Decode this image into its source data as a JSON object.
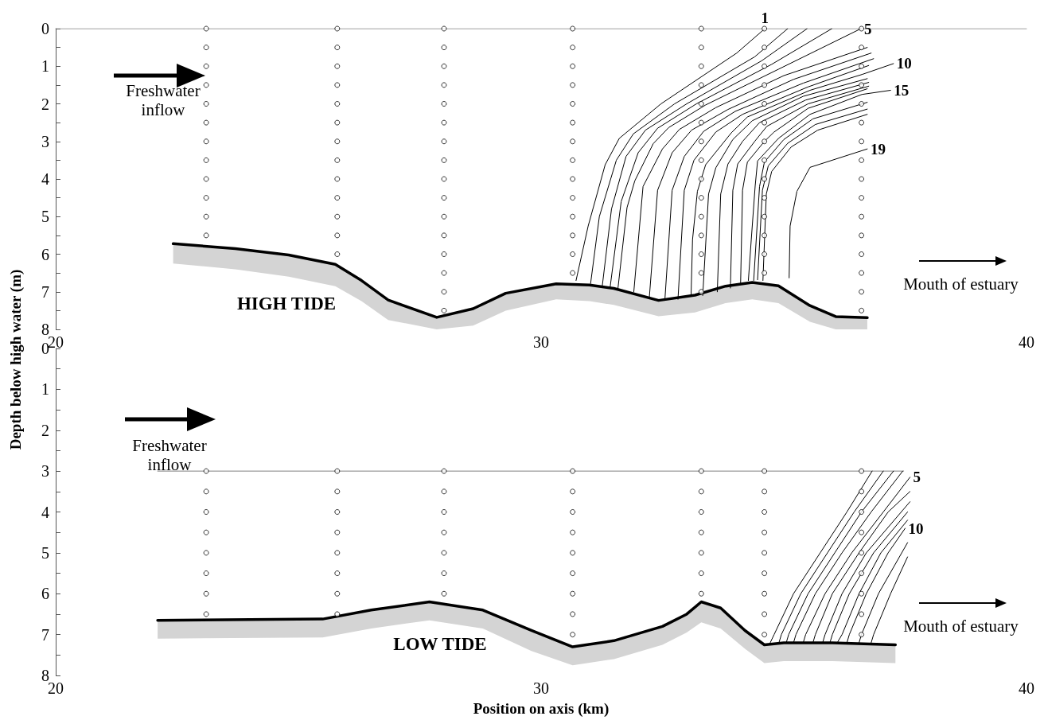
{
  "chart_data": [
    {
      "type": "line",
      "ylabel": "Depth below high water (m)",
      "annotations": [
        "Freshwater inflow",
        "Mouth of estuary",
        "HIGH TIDE"
      ],
      "xlim": [
        20,
        40
      ],
      "xticks": [
        20,
        30,
        40
      ],
      "ylim": [
        8,
        0
      ],
      "yticks": [
        0,
        {
          "value": 0.5,
          "label": null
        },
        1,
        {
          "value": 1.5,
          "label": null
        },
        2,
        {
          "value": 2.5,
          "label": null
        },
        3,
        {
          "value": 3.5,
          "label": null
        },
        4,
        {
          "value": 4.5,
          "label": null
        },
        5,
        {
          "value": 5.5,
          "label": null
        },
        6,
        {
          "value": 6.5,
          "label": null
        },
        7,
        {
          "value": 7.5,
          "label": null
        },
        8
      ],
      "series": [
        {
          "type": "line",
          "color": "#808080",
          "x": [
            20,
            40
          ],
          "values": [
            0,
            0
          ]
        },
        {
          "type": "scatter",
          "marker": "circle",
          "color": "#000000",
          "x": [
            23.1,
            23.1,
            23.1,
            23.1,
            23.1,
            23.1,
            23.1,
            23.1,
            23.1,
            23.1,
            23.1,
            23.1
          ],
          "values": [
            0,
            0.5,
            1,
            1.5,
            2,
            2.5,
            3,
            3.5,
            4,
            4.5,
            5,
            5.5
          ]
        },
        {
          "type": "scatter",
          "marker": "circle",
          "color": "#000000",
          "x": [
            25.8,
            25.8,
            25.8,
            25.8,
            25.8,
            25.8,
            25.8,
            25.8,
            25.8,
            25.8,
            25.8,
            25.8,
            25.8
          ],
          "values": [
            0,
            0.5,
            1,
            1.5,
            2,
            2.5,
            3,
            3.5,
            4,
            4.5,
            5,
            5.5,
            6
          ]
        },
        {
          "type": "scatter",
          "marker": "circle",
          "color": "#000000",
          "x": [
            28,
            28,
            28,
            28,
            28,
            28,
            28,
            28,
            28,
            28,
            28,
            28,
            28,
            28,
            28,
            28
          ],
          "values": [
            0,
            0.5,
            1,
            1.5,
            2,
            2.5,
            3,
            3.5,
            4,
            4.5,
            5,
            5.5,
            6,
            6.5,
            7,
            7.5
          ]
        },
        {
          "type": "scatter",
          "marker": "circle",
          "color": "#000000",
          "x": [
            30.65,
            30.65,
            30.65,
            30.65,
            30.65,
            30.65,
            30.65,
            30.65,
            30.65,
            30.65,
            30.65,
            30.65,
            30.65,
            30.65
          ],
          "values": [
            0,
            0.5,
            1,
            1.5,
            2,
            2.5,
            3,
            3.5,
            4,
            4.5,
            5,
            5.5,
            6,
            6.5
          ]
        },
        {
          "type": "scatter",
          "marker": "circle",
          "color": "#000000",
          "x": [
            33.3,
            33.3,
            33.3,
            33.3,
            33.3,
            33.3,
            33.3,
            33.3,
            33.3,
            33.3,
            33.3,
            33.3,
            33.3,
            33.3,
            33.3
          ],
          "values": [
            0,
            0.5,
            1,
            1.5,
            2,
            2.5,
            3,
            3.5,
            4,
            4.5,
            5,
            5.5,
            6,
            6.5,
            7
          ]
        },
        {
          "type": "scatter",
          "marker": "circle",
          "color": "#000000",
          "x": [
            34.6,
            34.6,
            34.6,
            34.6,
            34.6,
            34.6,
            34.6,
            34.6,
            34.6,
            34.6,
            34.6,
            34.6,
            34.6,
            34.6
          ],
          "values": [
            0,
            0.5,
            1,
            1.5,
            2,
            2.5,
            3,
            3.5,
            4,
            4.5,
            5,
            5.5,
            6,
            6.5
          ]
        },
        {
          "type": "scatter",
          "marker": "circle",
          "color": "#000000",
          "x": [
            36.6,
            36.6,
            36.6,
            36.6,
            36.6,
            36.6,
            36.6,
            36.6,
            36.6,
            36.6,
            36.6,
            36.6,
            36.6,
            36.6,
            36.6,
            36.6
          ],
          "values": [
            0,
            0.5,
            1,
            1.5,
            2,
            2.5,
            3,
            3.5,
            4,
            4.5,
            5,
            5.5,
            6,
            6.5,
            7,
            7.5
          ]
        },
        {
          "type": "line",
          "name": "1",
          "color": "#000000",
          "x": [
            34.61,
            34.03,
            32.47,
            31.61,
            31.32,
            30.97,
            30.72
          ],
          "values": [
            0,
            0.65,
            2.0,
            2.92,
            3.62,
            5.25,
            6.7
          ]
        },
        {
          "type": "line",
          "color": "#000000",
          "x": [
            35.08,
            34.4,
            32.75,
            31.9,
            31.55,
            31.2,
            31.02
          ],
          "values": [
            0,
            0.75,
            2.0,
            2.8,
            3.5,
            5.0,
            6.78
          ]
        },
        {
          "type": "line",
          "color": "#000000",
          "x": [
            35.48,
            34.55,
            33.0,
            32.15,
            31.75,
            31.45,
            31.26
          ],
          "values": [
            0,
            0.85,
            2.0,
            2.7,
            3.4,
            4.8,
            6.85
          ]
        },
        {
          "type": "line",
          "color": "#000000",
          "x": [
            35.99,
            34.75,
            33.2,
            32.4,
            32.0,
            31.65,
            31.42
          ],
          "values": [
            0,
            0.95,
            2.0,
            2.65,
            3.3,
            4.6,
            6.9
          ]
        },
        {
          "type": "line",
          "name": "5",
          "color": "#000000",
          "x": [
            36.59,
            34.89,
            33.39,
            32.63,
            32.31,
            31.93,
            31.77,
            31.58
          ],
          "values": [
            0,
            1.08,
            2.03,
            2.63,
            3.06,
            4.05,
            4.76,
            6.95
          ]
        },
        {
          "type": "line",
          "color": "#000000",
          "x": [
            36.72,
            35.0,
            33.6,
            32.85,
            32.5,
            32.1,
            31.91
          ],
          "values": [
            0.5,
            1.25,
            2.1,
            2.68,
            3.2,
            4.2,
            7.0
          ]
        },
        {
          "type": "line",
          "color": "#000000",
          "x": [
            36.8,
            35.2,
            33.85,
            33.1,
            32.7,
            32.4,
            32.23
          ],
          "values": [
            0.65,
            1.35,
            2.15,
            2.7,
            3.3,
            4.3,
            7.15
          ]
        },
        {
          "type": "line",
          "color": "#000000",
          "x": [
            36.85,
            35.4,
            34.0,
            33.35,
            32.95,
            32.7,
            32.55
          ],
          "values": [
            0.8,
            1.45,
            2.2,
            2.73,
            3.4,
            4.3,
            7.22
          ]
        },
        {
          "type": "line",
          "color": "#000000",
          "x": [
            36.75,
            35.5,
            34.15,
            33.6,
            33.15,
            32.95,
            32.82
          ],
          "values": [
            0.98,
            1.55,
            2.28,
            2.75,
            3.5,
            4.3,
            7.2
          ]
        },
        {
          "type": "line",
          "name": "10",
          "color": "#000000",
          "x": [
            37.26,
            36.61,
            35.54,
            34.25,
            33.92,
            33.39,
            33.22,
            33.12,
            33.09
          ],
          "values": [
            0.93,
            1.22,
            1.64,
            2.35,
            2.77,
            3.62,
            4.33,
            5.61,
            7.09
          ]
        },
        {
          "type": "line",
          "color": "#000000",
          "x": [
            36.72,
            35.4,
            34.35,
            33.95,
            33.6,
            33.45,
            33.33
          ],
          "values": [
            1.33,
            1.8,
            2.45,
            2.95,
            3.7,
            4.4,
            7.1
          ]
        },
        {
          "type": "line",
          "color": "#000000",
          "x": [
            36.75,
            35.45,
            34.5,
            34.15,
            33.85,
            33.7,
            33.63
          ],
          "values": [
            1.43,
            1.9,
            2.5,
            3.0,
            3.6,
            4.4,
            7.0
          ]
        },
        {
          "type": "line",
          "color": "#000000",
          "x": [
            36.75,
            35.5,
            34.65,
            34.4,
            34.05,
            33.95,
            33.9
          ],
          "values": [
            1.53,
            2.0,
            2.6,
            3.0,
            3.6,
            4.3,
            6.9
          ]
        },
        {
          "type": "line",
          "color": "#000000",
          "x": [
            36.72,
            35.5,
            34.8,
            34.6,
            34.25,
            34.15,
            34.11
          ],
          "values": [
            1.6,
            2.12,
            2.75,
            3.0,
            3.55,
            4.3,
            6.8
          ]
        },
        {
          "type": "line",
          "name": "15",
          "color": "#000000",
          "x": [
            37.2,
            36.61,
            35.54,
            34.89,
            34.46,
            34.41,
            34.33,
            34.27
          ],
          "values": [
            1.64,
            1.75,
            2.28,
            2.92,
            3.52,
            4.19,
            5.61,
            6.7
          ]
        },
        {
          "type": "line",
          "color": "#000000",
          "x": [
            36.72,
            35.6,
            35.0,
            34.6,
            34.5,
            34.38
          ],
          "values": [
            1.96,
            2.4,
            2.95,
            3.55,
            4.2,
            6.7
          ]
        },
        {
          "type": "line",
          "color": "#000000",
          "x": [
            36.72,
            35.65,
            35.08,
            34.68,
            34.56,
            34.46
          ],
          "values": [
            2.14,
            2.55,
            3.05,
            3.65,
            4.3,
            6.68
          ]
        },
        {
          "type": "line",
          "color": "#000000",
          "x": [
            36.72,
            35.7,
            35.15,
            34.75,
            34.64,
            34.57
          ],
          "values": [
            2.28,
            2.7,
            3.15,
            3.8,
            4.4,
            6.7
          ]
        },
        {
          "type": "line",
          "name": "19",
          "color": "#000000",
          "x": [
            36.72,
            35.54,
            35.27,
            35.13,
            35.11
          ],
          "values": [
            3.2,
            3.69,
            4.33,
            5.25,
            6.63
          ]
        },
        {
          "type": "line",
          "color": "#000000",
          "x": [
            22.42,
            23.7,
            24.8,
            25.76,
            26.3,
            26.85,
            27.85,
            28.6,
            29.27,
            30.31,
            31.0,
            31.5,
            32.42,
            33.17,
            33.8,
            34.35,
            34.89,
            35.54,
            36.07,
            36.72
          ],
          "values": [
            5.72,
            5.85,
            6.02,
            6.27,
            6.7,
            7.22,
            7.68,
            7.45,
            7.04,
            6.79,
            6.82,
            6.91,
            7.23,
            7.09,
            6.85,
            6.75,
            6.84,
            7.37,
            7.66,
            7.69
          ],
          "lower": [
            5.72,
            5.85,
            6.02,
            6.27,
            6.7,
            7.22,
            7.68,
            7.45,
            7.04,
            6.79,
            6.82,
            6.91,
            7.23,
            7.09,
            6.85,
            6.75,
            6.84,
            7.37,
            7.66,
            7.69
          ],
          "upper": [
            6.25,
            6.4,
            6.6,
            6.85,
            7.25,
            7.75,
            8.0,
            7.9,
            7.5,
            7.2,
            7.25,
            7.35,
            7.65,
            7.55,
            7.3,
            7.2,
            7.3,
            7.8,
            8.0,
            8.0
          ]
        }
      ]
    },
    {
      "type": "line",
      "xlabel": "Position on axis (km)",
      "annotations": [
        "Freshwater inflow",
        "Mouth of estuary",
        "LOW TIDE"
      ],
      "xlim": [
        20,
        40
      ],
      "xticks": [
        20,
        30,
        40
      ],
      "ylim": [
        8,
        0
      ],
      "yticks": [
        0,
        {
          "value": 0.5,
          "label": null
        },
        1,
        {
          "value": 1.5,
          "label": null
        },
        2,
        {
          "value": 2.5,
          "label": null
        },
        3,
        {
          "value": 3.5,
          "label": null
        },
        4,
        {
          "value": 4.5,
          "label": null
        },
        5,
        {
          "value": 5.5,
          "label": null
        },
        6,
        {
          "value": 6.5,
          "label": null
        },
        7,
        {
          "value": 7.5,
          "label": null
        },
        8
      ],
      "series": [
        {
          "type": "line",
          "color": "#808080",
          "x": [
            22.1,
            37.47
          ],
          "values": [
            3,
            3
          ]
        },
        {
          "type": "scatter",
          "marker": "circle",
          "color": "#000000",
          "x": [
            23.1,
            23.1,
            23.1,
            23.1,
            23.1,
            23.1,
            23.1,
            23.1
          ],
          "values": [
            3,
            3.5,
            4,
            4.5,
            5,
            5.5,
            6,
            6.5
          ]
        },
        {
          "type": "scatter",
          "marker": "circle",
          "color": "#000000",
          "x": [
            25.8,
            25.8,
            25.8,
            25.8,
            25.8,
            25.8,
            25.8,
            25.8
          ],
          "values": [
            3,
            3.5,
            4,
            4.5,
            5,
            5.5,
            6,
            6.5
          ]
        },
        {
          "type": "scatter",
          "marker": "circle",
          "color": "#000000",
          "x": [
            28,
            28,
            28,
            28,
            28,
            28,
            28
          ],
          "values": [
            3,
            3.5,
            4,
            4.5,
            5,
            5.5,
            6
          ]
        },
        {
          "type": "scatter",
          "marker": "circle",
          "color": "#000000",
          "x": [
            30.65,
            30.65,
            30.65,
            30.65,
            30.65,
            30.65,
            30.65,
            30.65,
            30.65
          ],
          "values": [
            3,
            3.5,
            4,
            4.5,
            5,
            5.5,
            6,
            6.5,
            7
          ]
        },
        {
          "type": "scatter",
          "marker": "circle",
          "color": "#000000",
          "x": [
            33.3,
            33.3,
            33.3,
            33.3,
            33.3,
            33.3,
            33.3
          ],
          "values": [
            3,
            3.5,
            4,
            4.5,
            5,
            5.5,
            6
          ]
        },
        {
          "type": "scatter",
          "marker": "circle",
          "color": "#000000",
          "x": [
            34.6,
            34.6,
            34.6,
            34.6,
            34.6,
            34.6,
            34.6,
            34.6,
            34.6
          ],
          "values": [
            3,
            3.5,
            4,
            4.5,
            5,
            5.5,
            6,
            6.5,
            7
          ]
        },
        {
          "type": "scatter",
          "marker": "circle",
          "color": "#000000",
          "x": [
            36.6,
            36.6,
            36.6,
            36.6,
            36.6,
            36.6,
            36.6,
            36.6,
            36.6
          ],
          "values": [
            3,
            3.5,
            4,
            4.5,
            5,
            5.5,
            6,
            6.5,
            7
          ]
        },
        {
          "type": "line",
          "color": "#000000",
          "x": [
            36.82,
            36.3,
            35.75,
            35.2,
            34.8,
            34.72
          ],
          "values": [
            3,
            4,
            5,
            6,
            7,
            7.2
          ]
        },
        {
          "type": "line",
          "color": "#000000",
          "x": [
            37.05,
            36.45,
            35.9,
            35.35,
            34.95,
            34.9
          ],
          "values": [
            3,
            4,
            5,
            6,
            7,
            7.2
          ]
        },
        {
          "type": "line",
          "color": "#000000",
          "x": [
            37.26,
            36.6,
            36.05,
            35.5,
            35.1,
            35.05
          ],
          "values": [
            3,
            4,
            5,
            6,
            7,
            7.2
          ]
        },
        {
          "type": "line",
          "color": "#000000",
          "x": [
            37.45,
            36.8,
            36.2,
            35.65,
            35.25,
            35.2
          ],
          "values": [
            3,
            4,
            5,
            6,
            7,
            7.2
          ]
        },
        {
          "type": "line",
          "name": "5",
          "color": "#000000",
          "x": [
            37.6,
            37.05,
            36.4,
            35.85,
            35.45,
            35.4
          ],
          "values": [
            3.15,
            4,
            5,
            6,
            7,
            7.2
          ]
        },
        {
          "type": "line",
          "color": "#000000",
          "x": [
            37.6,
            37.15,
            36.55,
            36.0,
            35.65,
            35.6
          ],
          "values": [
            3.5,
            4,
            5,
            6,
            7,
            7.2
          ]
        },
        {
          "type": "line",
          "color": "#000000",
          "x": [
            37.6,
            36.7,
            36.2,
            35.85,
            35.8
          ],
          "values": [
            3.75,
            5,
            6,
            7,
            7.2
          ]
        },
        {
          "type": "line",
          "color": "#000000",
          "x": [
            37.55,
            36.85,
            36.35,
            36.0,
            35.95
          ],
          "values": [
            4.0,
            5,
            6,
            7,
            7.2
          ]
        },
        {
          "type": "line",
          "color": "#000000",
          "x": [
            37.55,
            37.0,
            36.55,
            36.2,
            36.1
          ],
          "values": [
            4.2,
            5,
            6,
            7,
            7.2
          ]
        },
        {
          "type": "line",
          "name": "10",
          "color": "#000000",
          "x": [
            37.5,
            37.15,
            36.7,
            36.35,
            36.3
          ],
          "values": [
            4.4,
            5,
            6,
            7,
            7.2
          ]
        },
        {
          "type": "line",
          "color": "#000000",
          "x": [
            37.55,
            36.95,
            36.6,
            36.55
          ],
          "values": [
            4.75,
            6,
            7,
            7.2
          ]
        },
        {
          "type": "line",
          "color": "#000000",
          "x": [
            37.55,
            37.2,
            36.85,
            36.8
          ],
          "values": [
            5.1,
            6,
            7,
            7.2
          ]
        },
        {
          "type": "line",
          "color": "#000000",
          "x": [
            22.1,
            25.5,
            26.5,
            27.7,
            28.8,
            29.8,
            30.65,
            31.5,
            32.5,
            33.0,
            33.3,
            33.7,
            34.2,
            34.6,
            35.0,
            36.0,
            37.3
          ],
          "values": [
            6.65,
            6.62,
            6.4,
            6.2,
            6.4,
            6.9,
            7.3,
            7.15,
            6.8,
            6.5,
            6.2,
            6.35,
            6.9,
            7.25,
            7.2,
            7.2,
            7.25
          ],
          "lower": [
            6.65,
            6.62,
            6.4,
            6.2,
            6.4,
            6.9,
            7.3,
            7.15,
            6.8,
            6.5,
            6.2,
            6.35,
            6.9,
            7.25,
            7.2,
            7.2,
            7.25
          ],
          "upper": [
            7.1,
            7.07,
            6.85,
            6.65,
            6.85,
            7.4,
            7.75,
            7.6,
            7.25,
            6.95,
            6.7,
            6.85,
            7.35,
            7.7,
            7.65,
            7.65,
            7.7
          ]
        }
      ]
    }
  ]
}
